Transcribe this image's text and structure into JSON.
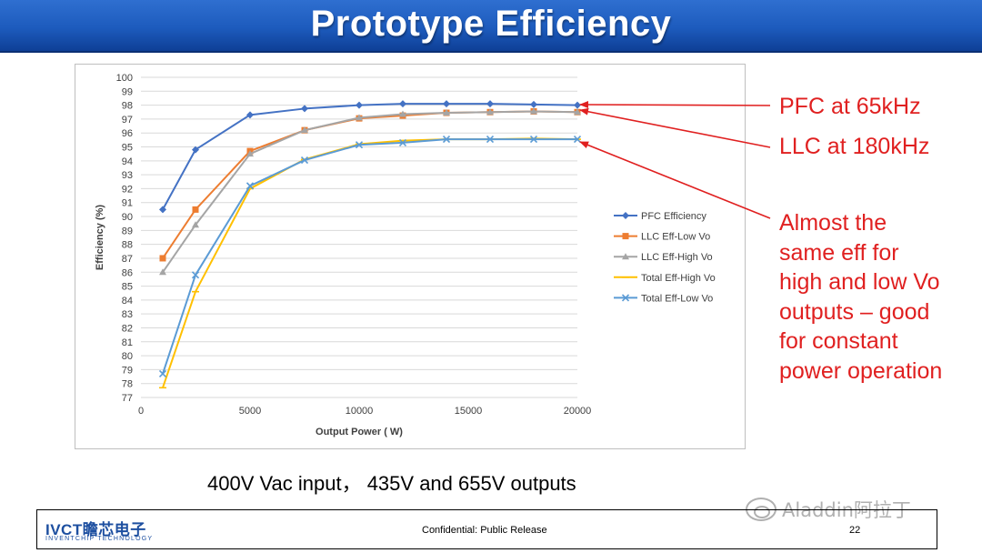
{
  "slide": {
    "title": "Prototype Efficiency",
    "caption": "400V Vac input， 435V and 655V outputs",
    "footer": {
      "logo_main": "IVCT瞻芯电子",
      "logo_sub": "INVENTCHIP TECHNOLOGY",
      "confidential": "Confidential: Public Release",
      "page_number": "22"
    },
    "watermark": "Aladdin阿拉丁",
    "watermark_icon": "wechat-icon"
  },
  "annotations": {
    "pfc": "PFC at 65kHz",
    "llc": "LLC at 180kHz",
    "almost": [
      "Almost the",
      "same eff for",
      "high and low Vo",
      "outputs – good",
      "for constant",
      "power operation"
    ],
    "color": "#e02020"
  },
  "chart_data": {
    "type": "line",
    "xlabel": "Output Power ( W)",
    "ylabel": "Efficiency (%)",
    "xlim": [
      0,
      20000
    ],
    "ylim": [
      77,
      100
    ],
    "xticks": [
      0,
      5000,
      10000,
      15000,
      20000
    ],
    "yticks": [
      77,
      78,
      79,
      80,
      81,
      82,
      83,
      84,
      85,
      86,
      87,
      88,
      89,
      90,
      91,
      92,
      93,
      94,
      95,
      96,
      97,
      98,
      99,
      100
    ],
    "grid": "horizontal",
    "legend_position": "right",
    "series": [
      {
        "name": "PFC Efficiency",
        "color": "#4472c4",
        "marker": "diamond",
        "x": [
          1000,
          2500,
          5000,
          7500,
          10000,
          12000,
          14000,
          16000,
          18000,
          20000
        ],
        "values": [
          90.5,
          94.8,
          97.3,
          97.75,
          98.0,
          98.1,
          98.1,
          98.1,
          98.05,
          98.0
        ]
      },
      {
        "name": "LLC Eff-Low Vo",
        "color": "#ed7d31",
        "marker": "square",
        "x": [
          1000,
          2500,
          5000,
          7500,
          10000,
          12000,
          14000,
          16000,
          18000,
          20000
        ],
        "values": [
          87.0,
          90.5,
          94.7,
          96.2,
          97.05,
          97.25,
          97.45,
          97.5,
          97.55,
          97.5
        ]
      },
      {
        "name": "LLC Eff-High Vo",
        "color": "#a5a5a5",
        "marker": "triangle",
        "x": [
          1000,
          2500,
          5000,
          7500,
          10000,
          12000,
          14000,
          16000,
          18000,
          20000
        ],
        "values": [
          86.0,
          89.4,
          94.5,
          96.2,
          97.1,
          97.35,
          97.45,
          97.5,
          97.55,
          97.5
        ]
      },
      {
        "name": "Total Eff-High Vo",
        "color": "#ffc000",
        "marker": "line",
        "x": [
          1000,
          2500,
          5000,
          7500,
          10000,
          12000,
          14000,
          16000,
          18000,
          20000
        ],
        "values": [
          77.7,
          84.6,
          92.0,
          94.1,
          95.2,
          95.45,
          95.55,
          95.55,
          95.6,
          95.55
        ]
      },
      {
        "name": "Total Eff-Low Vo",
        "color": "#5b9bd5",
        "marker": "x",
        "x": [
          1000,
          2500,
          5000,
          7500,
          10000,
          12000,
          14000,
          16000,
          18000,
          20000
        ],
        "values": [
          78.7,
          85.8,
          92.2,
          94.05,
          95.15,
          95.3,
          95.55,
          95.55,
          95.55,
          95.55
        ]
      }
    ]
  }
}
